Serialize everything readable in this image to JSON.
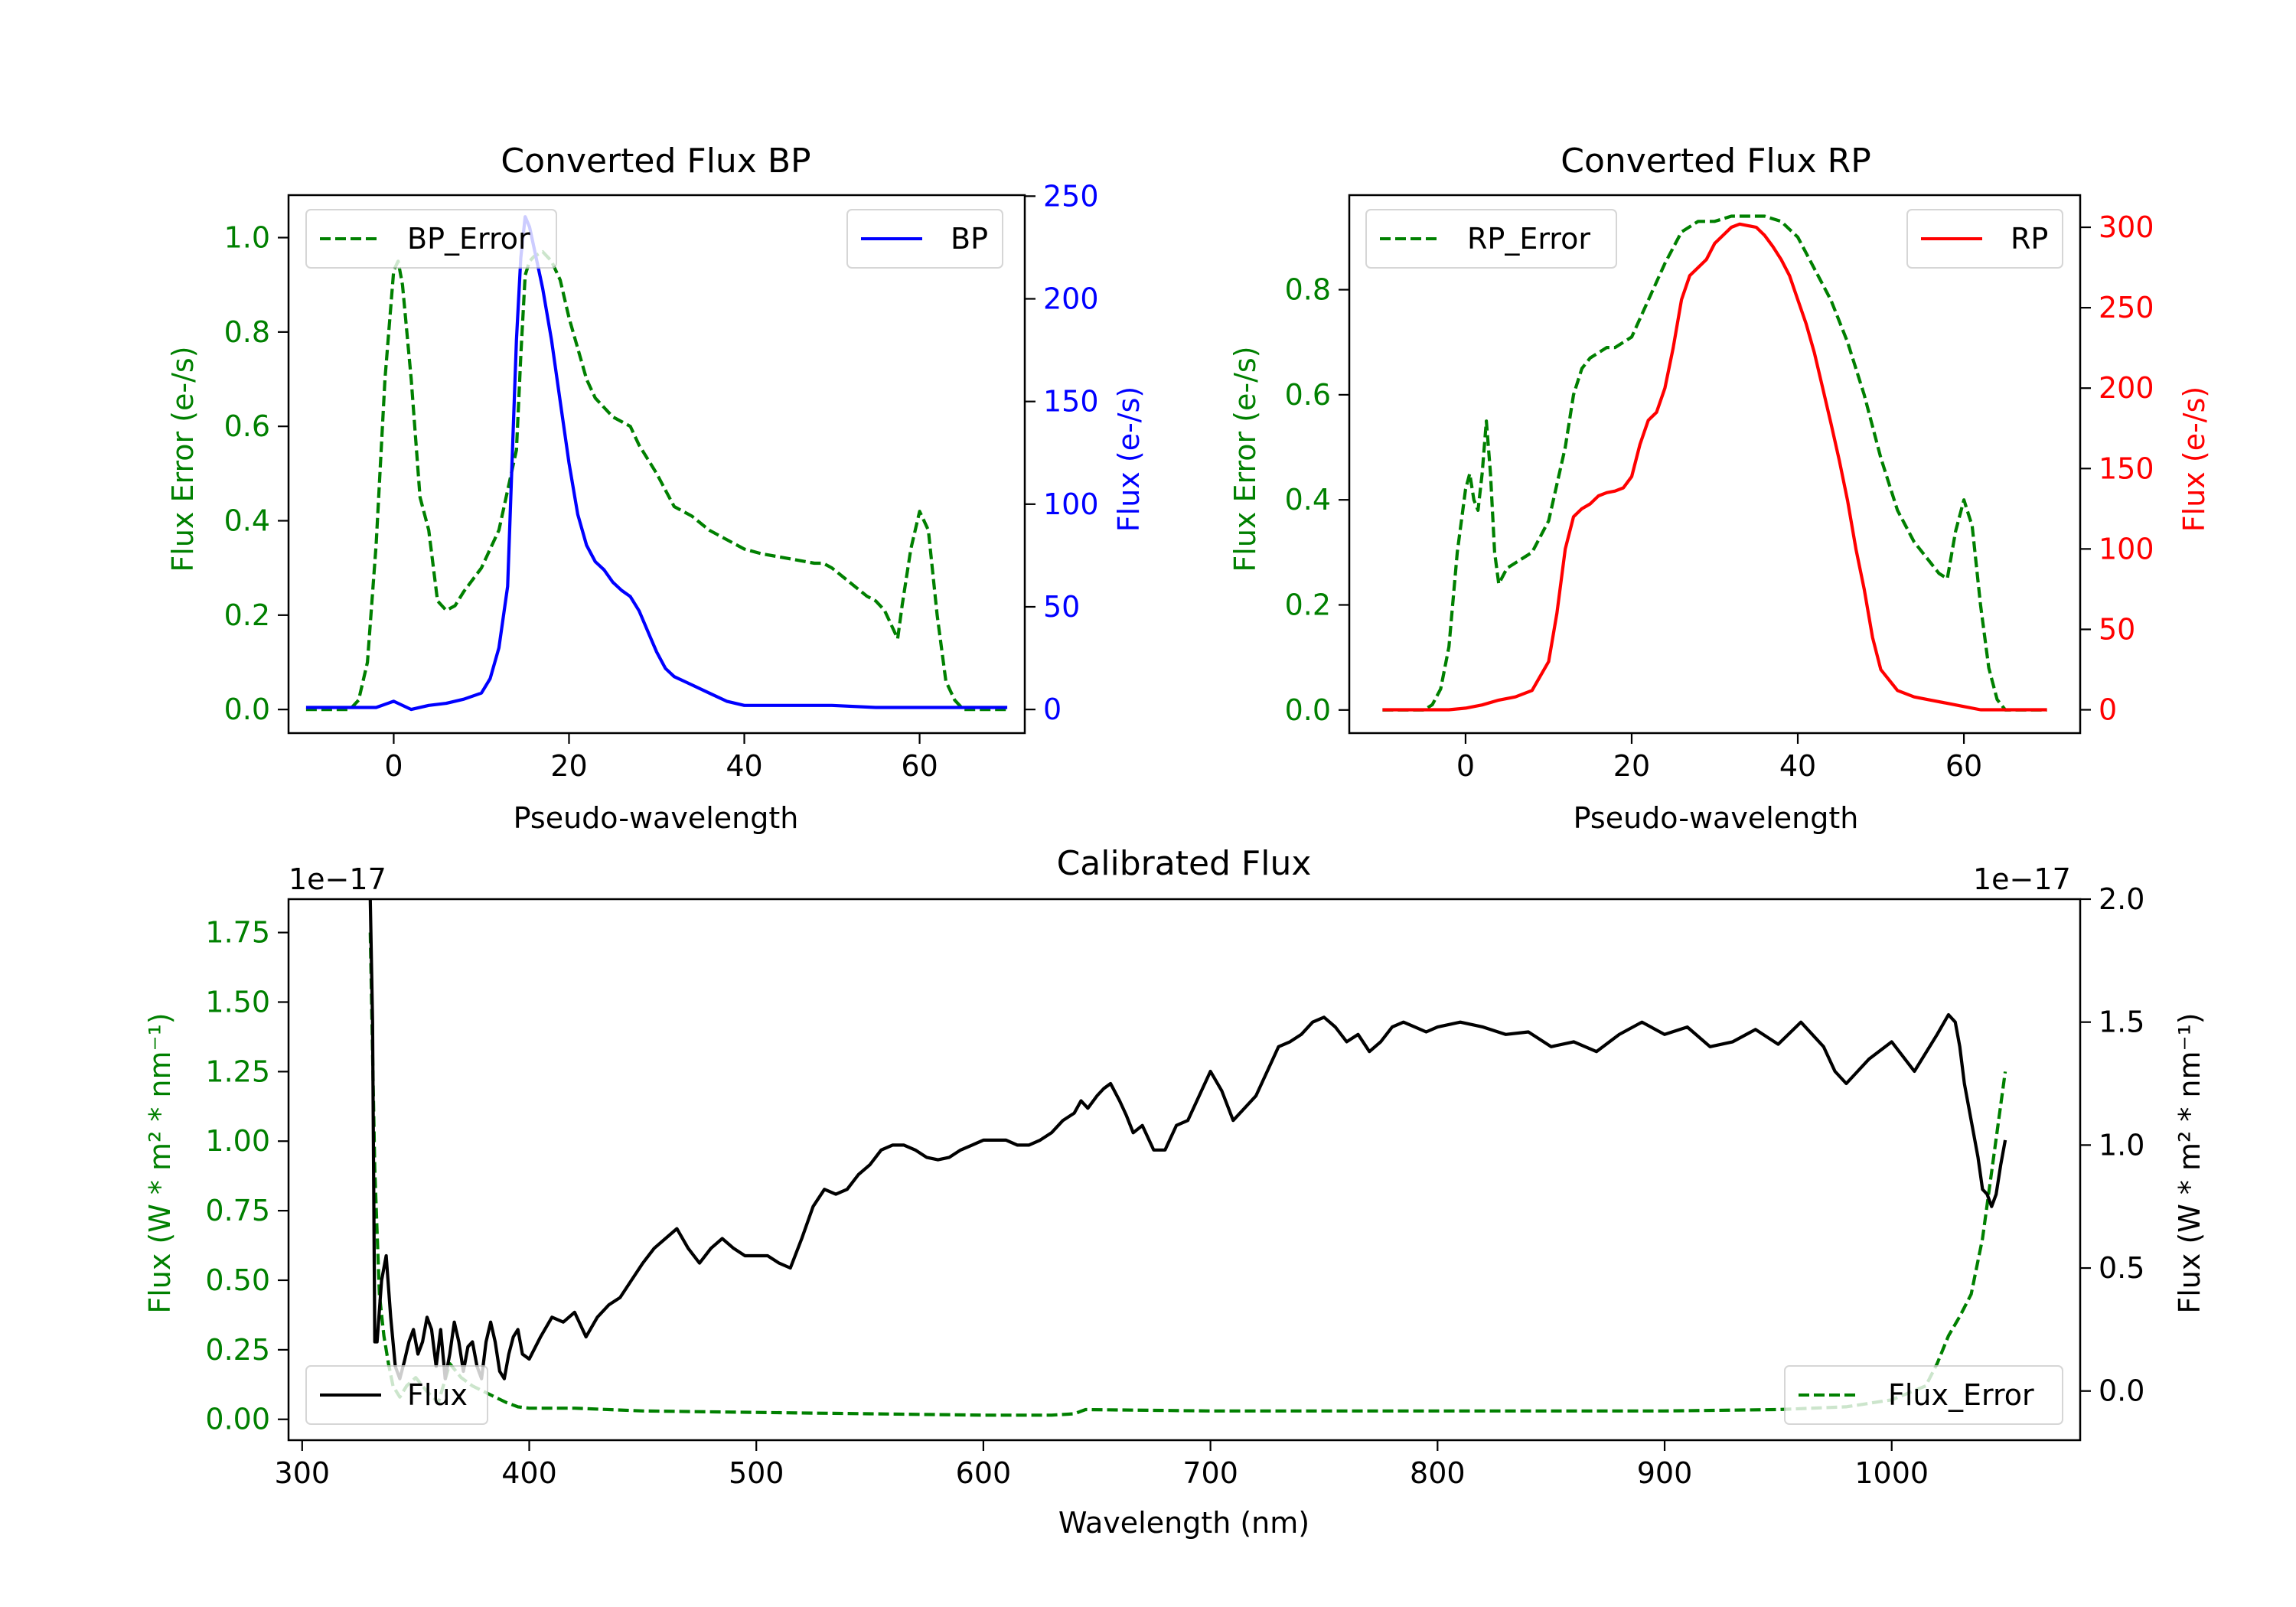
{
  "colors": {
    "error": "#008000",
    "bp": "#0000ff",
    "rp": "#ff0000",
    "flux": "#000000",
    "axis": "#000000"
  },
  "chart_data": [
    {
      "id": "bp",
      "type": "line",
      "title": "Converted Flux BP",
      "xlabel": "Pseudo-wavelength",
      "ylabel_left": "Flux Error (e-/s)",
      "ylabel_right": "Flux (e-/s)",
      "xlim": [
        -12,
        72
      ],
      "ylim_left": [
        -0.05,
        1.09
      ],
      "ylim_right": [
        -11.5,
        250.5
      ],
      "xticks": [
        0,
        20,
        40,
        60
      ],
      "yticks_left": [
        0.0,
        0.2,
        0.4,
        0.6,
        0.8,
        1.0
      ],
      "yticks_right": [
        0,
        50,
        100,
        150,
        200,
        250
      ],
      "series": [
        {
          "name": "BP_Error",
          "axis": "left",
          "style": "dashed",
          "color": "error",
          "legend": "top-left",
          "x": [
            -10,
            -5,
            -4,
            -3,
            -2,
            -1,
            0,
            0.5,
            1,
            2,
            3,
            4,
            5,
            6,
            7,
            8,
            10,
            12,
            14,
            14.5,
            15,
            15.5,
            16,
            17,
            18,
            19,
            20,
            22,
            23,
            24,
            25,
            26,
            27,
            28,
            30,
            32,
            34,
            36,
            38,
            40,
            42,
            45,
            48,
            49,
            50,
            52,
            54,
            55,
            56,
            57,
            57.5,
            58,
            59,
            60,
            61,
            62,
            63,
            64,
            65,
            66,
            70
          ],
          "y": [
            0.0,
            0.0,
            0.02,
            0.1,
            0.35,
            0.7,
            0.93,
            0.95,
            0.9,
            0.7,
            0.45,
            0.38,
            0.23,
            0.21,
            0.22,
            0.25,
            0.3,
            0.38,
            0.55,
            0.75,
            0.92,
            0.95,
            0.96,
            0.97,
            0.95,
            0.91,
            0.83,
            0.7,
            0.66,
            0.64,
            0.62,
            0.61,
            0.6,
            0.56,
            0.5,
            0.43,
            0.41,
            0.38,
            0.36,
            0.34,
            0.33,
            0.32,
            0.31,
            0.31,
            0.3,
            0.27,
            0.24,
            0.23,
            0.21,
            0.17,
            0.15,
            0.22,
            0.34,
            0.42,
            0.38,
            0.2,
            0.06,
            0.02,
            0.0,
            0.0,
            0.0
          ]
        },
        {
          "name": "BP",
          "axis": "right",
          "style": "solid",
          "color": "bp",
          "legend": "top-right",
          "x": [
            -10,
            -5,
            -2,
            0,
            2,
            4,
            6,
            8,
            10,
            11,
            12,
            13,
            13.5,
            14,
            14.5,
            15,
            15.5,
            16,
            17,
            18,
            19,
            20,
            21,
            22,
            23,
            24,
            25,
            26,
            27,
            28,
            29,
            30,
            31,
            32,
            34,
            36,
            38,
            40,
            45,
            50,
            55,
            60,
            65,
            70
          ],
          "y": [
            1,
            1,
            1,
            4,
            0,
            2,
            3,
            5,
            8,
            15,
            30,
            60,
            120,
            180,
            220,
            240,
            235,
            225,
            205,
            180,
            150,
            120,
            95,
            80,
            72,
            68,
            62,
            58,
            55,
            48,
            38,
            28,
            20,
            16,
            12,
            8,
            4,
            2,
            2,
            2,
            1,
            1,
            1,
            1
          ]
        }
      ]
    },
    {
      "id": "rp",
      "type": "line",
      "title": "Converted Flux RP",
      "xlabel": "Pseudo-wavelength",
      "ylabel_left": "Flux Error (e-/s)",
      "ylabel_right": "Flux (e-/s)",
      "xlim": [
        -14,
        74
      ],
      "ylim_left": [
        -0.044,
        0.98
      ],
      "ylim_right": [
        -14.5,
        320
      ],
      "xticks": [
        0,
        20,
        40,
        60
      ],
      "yticks_left": [
        0.0,
        0.2,
        0.4,
        0.6,
        0.8
      ],
      "yticks_right": [
        0,
        50,
        100,
        150,
        200,
        250,
        300
      ],
      "series": [
        {
          "name": "RP_Error",
          "axis": "left",
          "style": "dashed",
          "color": "error",
          "legend": "top-left",
          "x": [
            -10,
            -5,
            -4,
            -3,
            -2,
            -1,
            0,
            0.5,
            1,
            1.5,
            2,
            2.5,
            3,
            3.5,
            4,
            5,
            6,
            8,
            10,
            12,
            13,
            14,
            15,
            16,
            17,
            18,
            20,
            22,
            24,
            26,
            28,
            30,
            32,
            34,
            36,
            38,
            40,
            42,
            44,
            46,
            48,
            50,
            52,
            54,
            55,
            56,
            57,
            58,
            59,
            60,
            61,
            62,
            63,
            64,
            65,
            70
          ],
          "y": [
            0.0,
            0.0,
            0.01,
            0.04,
            0.12,
            0.3,
            0.42,
            0.45,
            0.4,
            0.38,
            0.45,
            0.55,
            0.45,
            0.3,
            0.24,
            0.27,
            0.28,
            0.3,
            0.36,
            0.5,
            0.6,
            0.65,
            0.67,
            0.68,
            0.69,
            0.69,
            0.71,
            0.78,
            0.85,
            0.91,
            0.93,
            0.93,
            0.94,
            0.94,
            0.94,
            0.93,
            0.9,
            0.84,
            0.78,
            0.7,
            0.6,
            0.48,
            0.38,
            0.32,
            0.3,
            0.28,
            0.26,
            0.25,
            0.34,
            0.4,
            0.35,
            0.2,
            0.08,
            0.02,
            0.0,
            0.0
          ]
        },
        {
          "name": "RP",
          "axis": "right",
          "style": "solid",
          "color": "rp",
          "legend": "top-right",
          "x": [
            -10,
            -2,
            0,
            2,
            4,
            6,
            8,
            10,
            11,
            12,
            13,
            14,
            15,
            16,
            17,
            18,
            19,
            20,
            21,
            22,
            23,
            24,
            25,
            26,
            27,
            28,
            29,
            30,
            31,
            32,
            33,
            34,
            35,
            36,
            37,
            38,
            39,
            40,
            41,
            42,
            43,
            44,
            45,
            46,
            47,
            48,
            49,
            50,
            52,
            54,
            56,
            58,
            60,
            62,
            65,
            70
          ],
          "y": [
            0,
            0,
            1,
            3,
            6,
            8,
            12,
            30,
            60,
            100,
            120,
            125,
            128,
            133,
            135,
            136,
            138,
            145,
            165,
            180,
            185,
            200,
            225,
            255,
            270,
            275,
            280,
            290,
            295,
            300,
            302,
            301,
            300,
            295,
            288,
            280,
            270,
            255,
            240,
            222,
            200,
            178,
            155,
            130,
            100,
            75,
            45,
            25,
            12,
            8,
            6,
            4,
            2,
            0,
            0,
            0
          ]
        }
      ]
    },
    {
      "id": "calibrated",
      "type": "line",
      "title": "Calibrated Flux",
      "xlabel": "Wavelength (nm)",
      "ylabel_left": "Flux (W * m² * nm⁻¹)",
      "ylabel_right": "Flux (W * m² * nm⁻¹)",
      "offset_left": "1e−17",
      "offset_right": "1e−17",
      "xlim": [
        294,
        1083
      ],
      "ylim_left": [
        -0.075,
        1.87
      ],
      "ylim_right": [
        -0.2,
        2.0
      ],
      "xticks": [
        300,
        400,
        500,
        600,
        700,
        800,
        900,
        1000
      ],
      "yticks_left": [
        0.0,
        0.25,
        0.5,
        0.75,
        1.0,
        1.25,
        1.5,
        1.75
      ],
      "yticks_right": [
        0.0,
        0.5,
        1.0,
        1.5,
        2.0
      ],
      "series": [
        {
          "name": "Flux_Error",
          "axis": "left",
          "style": "dashed",
          "color": "error",
          "legend": "bottom-right",
          "x": [
            330,
            332,
            334,
            336,
            338,
            340,
            343,
            346,
            350,
            355,
            360,
            365,
            370,
            375,
            380,
            385,
            390,
            395,
            400,
            420,
            450,
            500,
            550,
            600,
            630,
            640,
            645,
            700,
            750,
            800,
            850,
            900,
            950,
            980,
            1000,
            1015,
            1020,
            1025,
            1030,
            1035,
            1040,
            1045,
            1050
          ],
          "y": [
            1.75,
            0.9,
            0.45,
            0.3,
            0.2,
            0.12,
            0.08,
            0.12,
            0.15,
            0.1,
            0.06,
            0.2,
            0.15,
            0.12,
            0.1,
            0.08,
            0.06,
            0.045,
            0.04,
            0.04,
            0.03,
            0.025,
            0.02,
            0.015,
            0.015,
            0.02,
            0.035,
            0.03,
            0.03,
            0.03,
            0.03,
            0.03,
            0.035,
            0.045,
            0.07,
            0.12,
            0.2,
            0.3,
            0.37,
            0.45,
            0.65,
            0.95,
            1.25
          ]
        },
        {
          "name": "Flux",
          "axis": "right",
          "style": "solid",
          "color": "flux",
          "legend": "bottom-left",
          "x": [
            330,
            331,
            332,
            333,
            335,
            337,
            339,
            341,
            343,
            345,
            347,
            349,
            351,
            353,
            355,
            357,
            359,
            361,
            363,
            365,
            367,
            369,
            371,
            373,
            375,
            377,
            379,
            381,
            383,
            385,
            387,
            389,
            391,
            393,
            395,
            397,
            400,
            405,
            410,
            415,
            420,
            425,
            430,
            435,
            440,
            445,
            450,
            455,
            460,
            465,
            470,
            475,
            480,
            485,
            490,
            495,
            500,
            505,
            510,
            515,
            520,
            525,
            530,
            535,
            540,
            545,
            550,
            555,
            560,
            565,
            570,
            575,
            580,
            585,
            590,
            595,
            600,
            605,
            610,
            615,
            620,
            625,
            630,
            635,
            640,
            643,
            646,
            650,
            653,
            656,
            660,
            663,
            666,
            670,
            675,
            680,
            685,
            690,
            695,
            700,
            705,
            710,
            715,
            720,
            725,
            730,
            735,
            740,
            745,
            750,
            755,
            760,
            765,
            770,
            775,
            780,
            785,
            790,
            795,
            800,
            810,
            820,
            830,
            840,
            850,
            860,
            870,
            880,
            890,
            900,
            910,
            920,
            930,
            940,
            950,
            960,
            970,
            975,
            980,
            985,
            990,
            1000,
            1010,
            1020,
            1025,
            1028,
            1030,
            1032,
            1035,
            1038,
            1040,
            1042,
            1044,
            1046,
            1048,
            1050
          ],
          "y": [
            2.0,
            1.5,
            0.2,
            0.2,
            0.45,
            0.55,
            0.3,
            0.1,
            0.05,
            0.12,
            0.2,
            0.25,
            0.15,
            0.2,
            0.3,
            0.25,
            0.1,
            0.25,
            0.05,
            0.15,
            0.28,
            0.2,
            0.08,
            0.18,
            0.2,
            0.1,
            0.05,
            0.2,
            0.28,
            0.2,
            0.08,
            0.05,
            0.15,
            0.22,
            0.25,
            0.15,
            0.13,
            0.22,
            0.3,
            0.28,
            0.32,
            0.22,
            0.3,
            0.35,
            0.38,
            0.45,
            0.52,
            0.58,
            0.62,
            0.66,
            0.58,
            0.52,
            0.58,
            0.62,
            0.58,
            0.55,
            0.55,
            0.55,
            0.52,
            0.5,
            0.62,
            0.75,
            0.82,
            0.8,
            0.82,
            0.88,
            0.92,
            0.98,
            1.0,
            1.0,
            0.98,
            0.95,
            0.94,
            0.95,
            0.98,
            1.0,
            1.02,
            1.02,
            1.02,
            1.0,
            1.0,
            1.02,
            1.05,
            1.1,
            1.13,
            1.18,
            1.15,
            1.2,
            1.23,
            1.25,
            1.18,
            1.12,
            1.05,
            1.08,
            0.98,
            0.98,
            1.08,
            1.1,
            1.2,
            1.3,
            1.22,
            1.1,
            1.15,
            1.2,
            1.3,
            1.4,
            1.42,
            1.45,
            1.5,
            1.52,
            1.48,
            1.42,
            1.45,
            1.38,
            1.42,
            1.48,
            1.5,
            1.48,
            1.46,
            1.48,
            1.5,
            1.48,
            1.45,
            1.46,
            1.4,
            1.42,
            1.38,
            1.45,
            1.5,
            1.45,
            1.48,
            1.4,
            1.42,
            1.47,
            1.41,
            1.5,
            1.4,
            1.3,
            1.25,
            1.3,
            1.35,
            1.42,
            1.3,
            1.45,
            1.53,
            1.5,
            1.4,
            1.25,
            1.1,
            0.95,
            0.82,
            0.8,
            0.75,
            0.8,
            0.92,
            1.02
          ]
        }
      ]
    }
  ]
}
